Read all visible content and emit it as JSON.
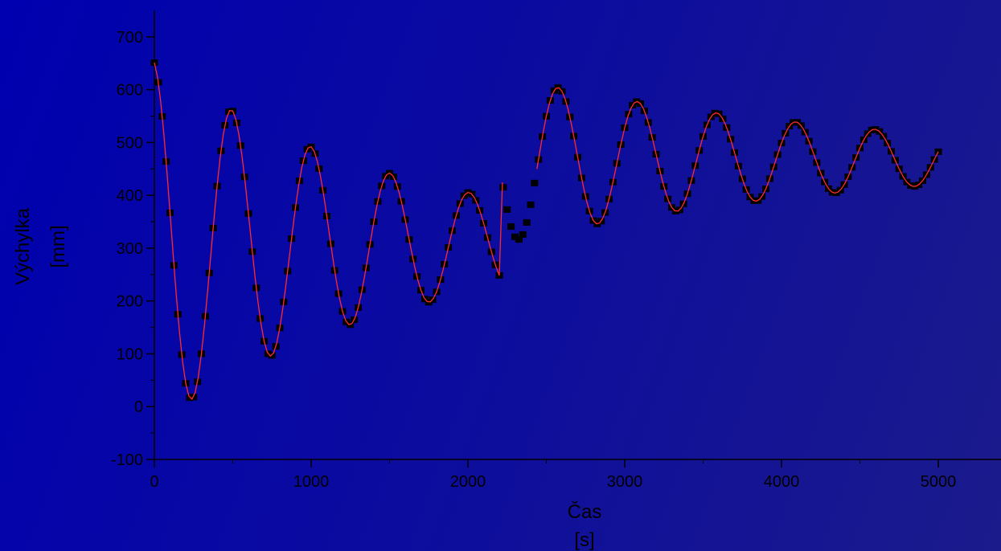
{
  "chart_data": {
    "type": "scatter",
    "title": "",
    "xlabel": "Čas",
    "xunit": "[s]",
    "ylabel": "Výchylka",
    "yunit": "[mm]",
    "xlim": [
      0,
      5400
    ],
    "ylim": [
      -100,
      750
    ],
    "xticks": [
      "0",
      "1000",
      "2000",
      "3000",
      "4000",
      "5000"
    ],
    "yticks": [
      "-100",
      "0",
      "100",
      "200",
      "300",
      "400",
      "500",
      "600",
      "700"
    ],
    "grid": false,
    "legend": "none",
    "colors": {
      "points": "#000000",
      "line": "#ff2a2a",
      "axis": "#000000"
    },
    "segments": [
      {
        "t_start": 0,
        "t_end": 2200,
        "offset": 310,
        "amp0": 345,
        "decay": 0.00064,
        "period": 505,
        "phase": 0.15
      },
      {
        "t_start": 2200,
        "t_end": 5000,
        "offset": 468,
        "amp0": 160,
        "decay": 0.00043,
        "period": 505,
        "phase": 1.6
      }
    ],
    "points_step_s": 25,
    "line_step_s": 20,
    "line_start_s": 0,
    "line_gap": [
      2220,
      2440
    ]
  }
}
